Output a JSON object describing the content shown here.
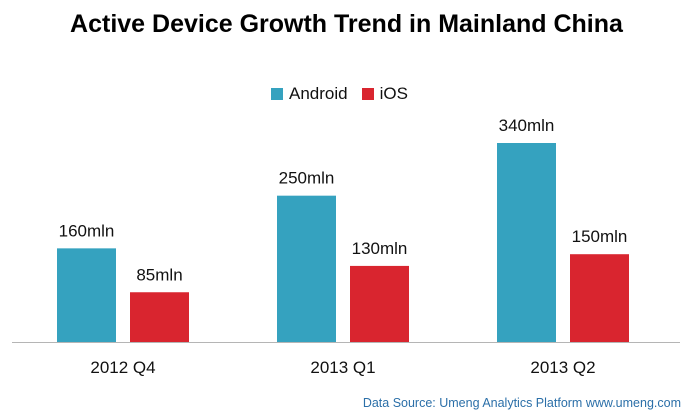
{
  "chart_data": {
    "type": "bar",
    "title": "Active Device Growth Trend in Mainland China",
    "categories": [
      "2012 Q4",
      "2013 Q1",
      "2013 Q2"
    ],
    "series": [
      {
        "name": "Android",
        "color": "#35a2bf",
        "values": [
          160,
          250,
          340
        ],
        "labels": [
          "160mln",
          "250mln",
          "340mln"
        ]
      },
      {
        "name": "iOS",
        "color": "#d9252f",
        "values": [
          85,
          130,
          150
        ],
        "labels": [
          "85mln",
          "130mln",
          "150mln"
        ]
      }
    ],
    "unit": "mln",
    "ylim": [
      0,
      340
    ],
    "xlabel": "",
    "ylabel": "",
    "legend": "top-center",
    "grid": false
  },
  "footer": {
    "source": "Data Source: Umeng Analytics Platform www.umeng.com"
  }
}
